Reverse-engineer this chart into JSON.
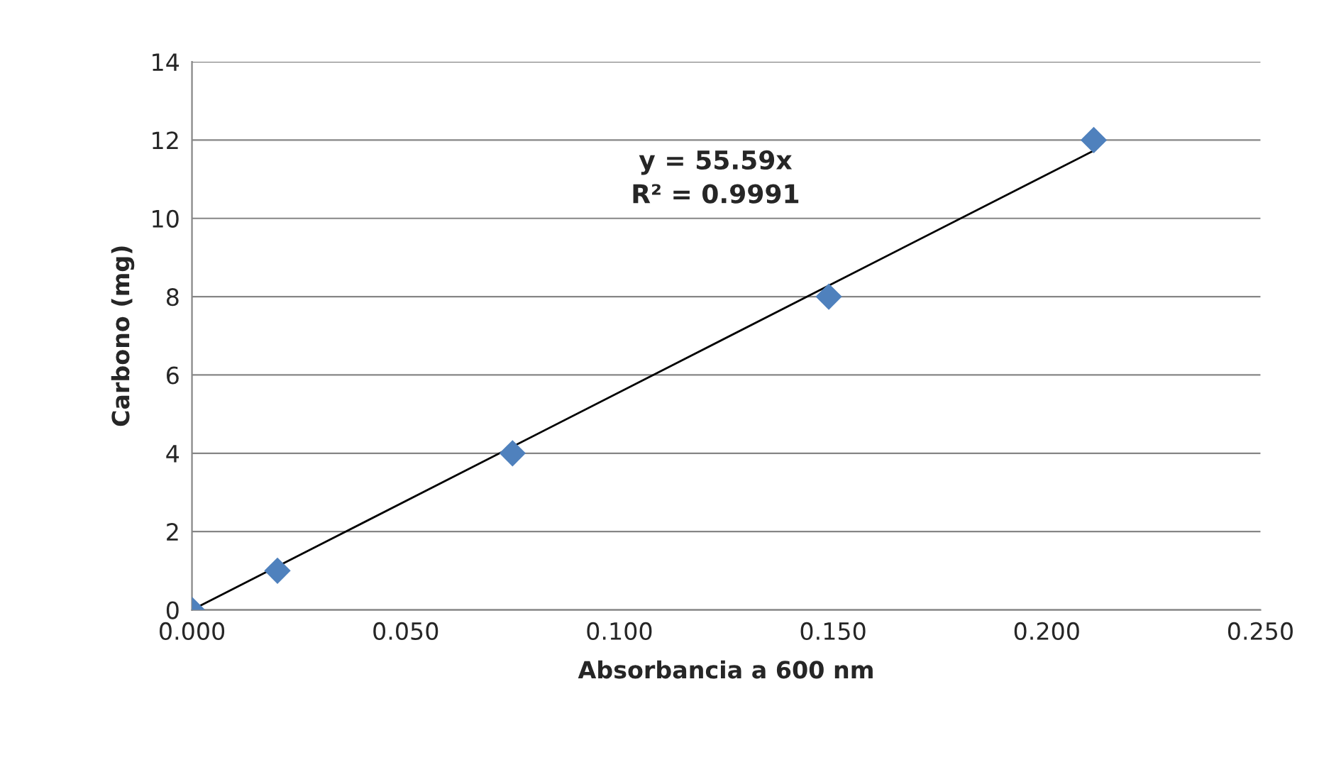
{
  "chart_data": {
    "type": "scatter",
    "xlabel": "Absorbancia a 600 nm",
    "ylabel": "Carbono (mg)",
    "series": [
      {
        "color": "#4f81bd",
        "marker": "diamond",
        "x": [
          0.0,
          0.02,
          0.075,
          0.149,
          0.211
        ],
        "values": [
          0,
          1,
          4,
          8,
          12
        ]
      },
      {
        "type": "line",
        "color": "#000000",
        "marker": "none",
        "line_style": "solid",
        "x": [
          0.0,
          0.211
        ],
        "values": [
          0,
          11.73
        ]
      }
    ],
    "annotations": [
      "y = 55.59x\nR² = 0.9991"
    ],
    "xlim": [
      0.0,
      0.25
    ],
    "xticks": [
      {
        "value": 0.0,
        "label": "0.000"
      },
      {
        "value": 0.05,
        "label": "0.050"
      },
      {
        "value": 0.1,
        "label": "0.100"
      },
      {
        "value": 0.15,
        "label": "0.150"
      },
      {
        "value": 0.2,
        "label": "0.200"
      },
      {
        "value": 0.25,
        "label": "0.250"
      }
    ],
    "ylim": [
      0,
      14
    ],
    "yticks": [
      0,
      2,
      4,
      6,
      8,
      10,
      12,
      14
    ],
    "grid": "y",
    "legend": false
  }
}
